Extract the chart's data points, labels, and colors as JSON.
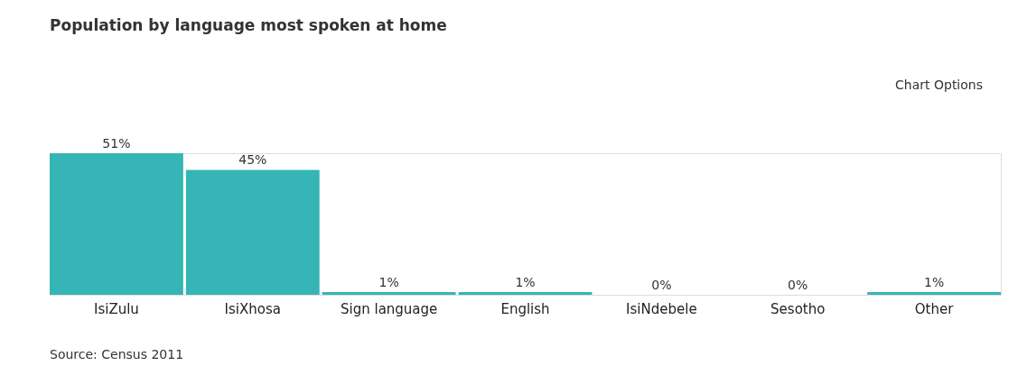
{
  "chart_data": {
    "type": "bar",
    "title": "Population by language most spoken at home",
    "categories": [
      "IsiZulu",
      "IsiXhosa",
      "Sign language",
      "English",
      "IsiNdebele",
      "Sesotho",
      "Other"
    ],
    "values": [
      51,
      45,
      1,
      1,
      0,
      0,
      1
    ],
    "value_labels": [
      "51%",
      "45%",
      "1%",
      "1%",
      "0%",
      "0%",
      "1%"
    ],
    "color": "#35b5b5",
    "annotations": [
      "Chart Options",
      "Source: Census 2011"
    ]
  }
}
